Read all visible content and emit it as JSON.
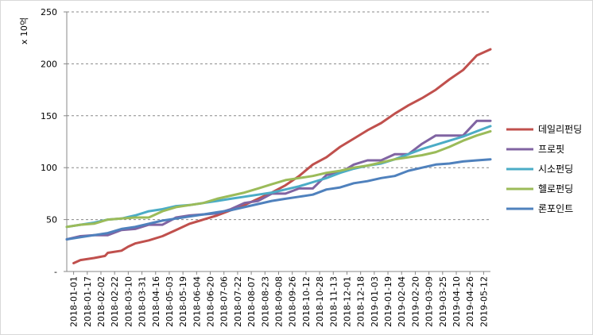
{
  "chart_data": {
    "type": "line",
    "ylabel": "x 10억",
    "ylim": [
      0,
      250
    ],
    "y_ticks": [
      "-",
      "50",
      "100",
      "150",
      "200",
      "250"
    ],
    "grid": "horizontal dashed",
    "legend_placement": "right",
    "x_tick_labels": [
      "2018-01-01",
      "2018-01-17",
      "2018-02-02",
      "2018-02-22",
      "2018-03-10",
      "2018-03-31",
      "2018-04-16",
      "2018-05-03",
      "2018-05-19",
      "2018-06-04",
      "2018-06-20",
      "2018-07-06",
      "2018-07-22",
      "2018-08-07",
      "2018-08-23",
      "2018-09-08",
      "2018-09-26",
      "2018-10-12",
      "2018-10-28",
      "2018-11-13",
      "2018-12-01",
      "2018-12-18",
      "2019-01-03",
      "2019-01-19",
      "2019-02-04",
      "2019-02-20",
      "2019-03-09",
      "2019-03-25",
      "2019-04-10",
      "2019-04-26",
      "2019-05-12"
    ],
    "x_tick_index": [
      0,
      1,
      2,
      3,
      4,
      5,
      6,
      7,
      8,
      9,
      10,
      11,
      12,
      13,
      14,
      15,
      16,
      17,
      18,
      19,
      20,
      21,
      22,
      23,
      24,
      25,
      26,
      27,
      28,
      29,
      30
    ],
    "series": [
      {
        "name": "데일리펀딩",
        "color": "#C0504D",
        "points": [
          [
            0.5,
            8
          ],
          [
            1,
            11
          ],
          [
            2,
            13
          ],
          [
            2.8,
            15
          ],
          [
            3,
            18
          ],
          [
            4,
            20
          ],
          [
            4.5,
            24
          ],
          [
            5,
            27
          ],
          [
            6,
            30
          ],
          [
            7,
            34
          ],
          [
            8,
            40
          ],
          [
            9,
            46
          ],
          [
            10,
            50
          ],
          [
            11,
            54
          ],
          [
            12,
            59
          ],
          [
            13,
            64
          ],
          [
            14,
            70
          ],
          [
            15,
            76
          ],
          [
            16,
            83
          ],
          [
            17,
            92
          ],
          [
            18,
            103
          ],
          [
            19,
            110
          ],
          [
            20,
            120
          ],
          [
            21,
            128
          ],
          [
            22,
            136
          ],
          [
            23,
            143
          ],
          [
            24,
            152
          ],
          [
            25,
            160
          ],
          [
            26,
            167
          ],
          [
            27,
            175
          ],
          [
            28,
            185
          ],
          [
            29,
            194
          ],
          [
            30,
            208
          ],
          [
            31,
            214
          ]
        ]
      },
      {
        "name": "프로핏",
        "color": "#8064A2",
        "points": [
          [
            0,
            31
          ],
          [
            1,
            34
          ],
          [
            2,
            35
          ],
          [
            3,
            35
          ],
          [
            4,
            40
          ],
          [
            5,
            41
          ],
          [
            6,
            45
          ],
          [
            7,
            45
          ],
          [
            8,
            52
          ],
          [
            9,
            54
          ],
          [
            10,
            55
          ],
          [
            11,
            56
          ],
          [
            12,
            60
          ],
          [
            13,
            66
          ],
          [
            14,
            68
          ],
          [
            15,
            75
          ],
          [
            16,
            75
          ],
          [
            17,
            80
          ],
          [
            18,
            80
          ],
          [
            19,
            93
          ],
          [
            20,
            95
          ],
          [
            21,
            103
          ],
          [
            22,
            107
          ],
          [
            23,
            107
          ],
          [
            24,
            113
          ],
          [
            25,
            113
          ],
          [
            26,
            123
          ],
          [
            27,
            131
          ],
          [
            28,
            131
          ],
          [
            29,
            131
          ],
          [
            30,
            145
          ],
          [
            31,
            145
          ]
        ]
      },
      {
        "name": "시소펀딩",
        "color": "#4BACC6",
        "points": [
          [
            0,
            43
          ],
          [
            1,
            45
          ],
          [
            2,
            47
          ],
          [
            3,
            50
          ],
          [
            4,
            51
          ],
          [
            5,
            54
          ],
          [
            6,
            58
          ],
          [
            7,
            60
          ],
          [
            8,
            63
          ],
          [
            9,
            64
          ],
          [
            10,
            66
          ],
          [
            11,
            68
          ],
          [
            12,
            70
          ],
          [
            13,
            72
          ],
          [
            14,
            74
          ],
          [
            15,
            76
          ],
          [
            16,
            79
          ],
          [
            17,
            82
          ],
          [
            18,
            86
          ],
          [
            19,
            90
          ],
          [
            20,
            95
          ],
          [
            21,
            99
          ],
          [
            22,
            102
          ],
          [
            23,
            104
          ],
          [
            24,
            108
          ],
          [
            25,
            113
          ],
          [
            26,
            118
          ],
          [
            27,
            122
          ],
          [
            28,
            126
          ],
          [
            29,
            130
          ],
          [
            30,
            135
          ],
          [
            31,
            140
          ]
        ]
      },
      {
        "name": "헬로펀딩",
        "color": "#9BBB59",
        "points": [
          [
            0,
            43
          ],
          [
            1,
            45
          ],
          [
            2,
            46
          ],
          [
            3,
            50
          ],
          [
            4,
            51
          ],
          [
            5,
            52
          ],
          [
            6,
            52
          ],
          [
            7,
            58
          ],
          [
            8,
            62
          ],
          [
            9,
            64
          ],
          [
            10,
            66
          ],
          [
            11,
            70
          ],
          [
            12,
            73
          ],
          [
            13,
            76
          ],
          [
            14,
            80
          ],
          [
            15,
            84
          ],
          [
            16,
            88
          ],
          [
            17,
            90
          ],
          [
            18,
            92
          ],
          [
            19,
            95
          ],
          [
            20,
            97
          ],
          [
            21,
            100
          ],
          [
            22,
            102
          ],
          [
            23,
            105
          ],
          [
            24,
            108
          ],
          [
            25,
            110
          ],
          [
            26,
            112
          ],
          [
            27,
            115
          ],
          [
            28,
            120
          ],
          [
            29,
            126
          ],
          [
            30,
            131
          ],
          [
            31,
            135
          ]
        ]
      },
      {
        "name": "론포인트",
        "color": "#4F81BD",
        "points": [
          [
            0,
            31
          ],
          [
            1,
            33
          ],
          [
            2,
            35
          ],
          [
            3,
            37
          ],
          [
            4,
            41
          ],
          [
            5,
            43
          ],
          [
            6,
            46
          ],
          [
            7,
            49
          ],
          [
            8,
            51
          ],
          [
            9,
            53
          ],
          [
            10,
            55
          ],
          [
            11,
            57
          ],
          [
            12,
            59
          ],
          [
            13,
            62
          ],
          [
            14,
            65
          ],
          [
            15,
            68
          ],
          [
            16,
            70
          ],
          [
            17,
            72
          ],
          [
            18,
            74
          ],
          [
            19,
            79
          ],
          [
            20,
            81
          ],
          [
            21,
            85
          ],
          [
            22,
            87
          ],
          [
            23,
            90
          ],
          [
            24,
            92
          ],
          [
            25,
            97
          ],
          [
            26,
            100
          ],
          [
            27,
            103
          ],
          [
            28,
            104
          ],
          [
            29,
            106
          ],
          [
            30,
            107
          ],
          [
            31,
            108
          ]
        ]
      }
    ]
  }
}
